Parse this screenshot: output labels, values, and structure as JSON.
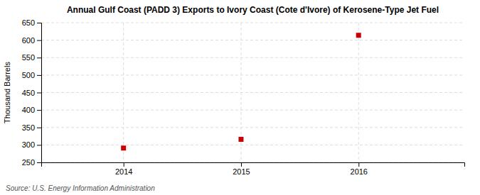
{
  "chart_data": {
    "type": "scatter",
    "title": "Annual Gulf Coast (PADD 3) Exports to Ivory Coast (Cote d'Ivore) of Kerosene-Type Jet Fuel",
    "ylabel": "Thousand Barrels",
    "source": "Source: U.S. Energy Information Administration",
    "x": [
      2014,
      2015,
      2016
    ],
    "values": [
      291,
      316,
      614
    ],
    "xlim": [
      2013.3,
      2016.9
    ],
    "ylim": [
      250,
      650
    ],
    "xticks": [
      2014,
      2015,
      2016
    ],
    "yticks": [
      250,
      300,
      350,
      400,
      450,
      500,
      550,
      600,
      650
    ],
    "color": "#cc0000",
    "marker": "square",
    "grid": true
  }
}
